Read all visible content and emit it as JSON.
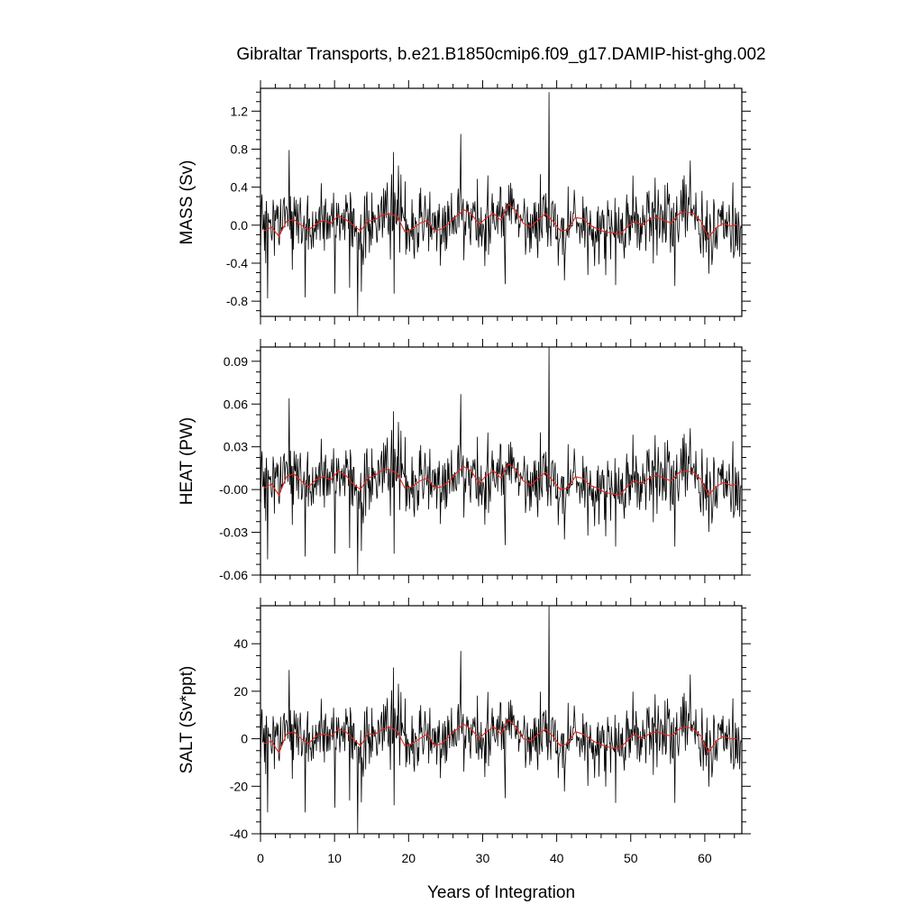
{
  "title": "Gibraltar Transports, b.e21.B1850cmip6.f09_g17.DAMIP-hist-ghg.002",
  "colors": {
    "raw": "#000000",
    "smooth": "#e8261d",
    "frame": "#000000"
  },
  "chart_data": [
    {
      "type": "line",
      "name": "mass",
      "ylabel": "MASS (Sv)",
      "xlabel": "",
      "xlim": [
        0,
        65
      ],
      "ylim": [
        -0.96,
        1.44
      ],
      "xticks": [
        0,
        10,
        20,
        30,
        40,
        50,
        60
      ],
      "yticks": [
        -0.8,
        -0.4,
        0.0,
        0.4,
        0.8,
        1.2
      ],
      "ytick_labels": [
        "-0.8",
        "-0.4",
        "0.0",
        "0.4",
        "0.8",
        "1.2"
      ],
      "grid": false,
      "series": [
        {
          "role": "monthly",
          "color": "#000000",
          "noise_std": 0.2,
          "spikes": [
            {
              "x": 38.96,
              "y": 1.4
            },
            {
              "x": 13.12,
              "y": -0.96
            },
            {
              "x": 27.0,
              "y": 0.96
            },
            {
              "x": 3.87,
              "y": 0.79
            },
            {
              "x": 0.96,
              "y": -0.77
            },
            {
              "x": 17.96,
              "y": 0.77
            },
            {
              "x": 6.04,
              "y": -0.76
            },
            {
              "x": 10.04,
              "y": -0.72
            },
            {
              "x": 18.0,
              "y": -0.72
            },
            {
              "x": 12.0,
              "y": -0.66
            },
            {
              "x": 33.0,
              "y": -0.62
            },
            {
              "x": 47.96,
              "y": -0.63
            },
            {
              "x": 55.96,
              "y": -0.64
            },
            {
              "x": 58.04,
              "y": 0.68
            }
          ]
        },
        {
          "role": "annual-mean",
          "color": "#e8261d",
          "x": [
            0.5,
            1.5,
            2.5,
            3.5,
            4.5,
            5.5,
            6.5,
            7.5,
            8.5,
            9.5,
            10.5,
            11.5,
            12.5,
            13.5,
            14.5,
            15.5,
            16.5,
            17.5,
            18.5,
            19.5,
            20.5,
            21.5,
            22.5,
            23.5,
            24.5,
            25.5,
            26.5,
            27.5,
            28.5,
            29.5,
            30.5,
            31.5,
            32.5,
            33.5,
            34.5,
            35.5,
            36.5,
            37.5,
            38.5,
            39.5,
            40.5,
            41.5,
            42.5,
            43.5,
            44.5,
            45.5,
            46.5,
            47.5,
            48.5,
            49.5,
            50.5,
            51.5,
            52.5,
            53.5,
            54.5,
            55.5,
            56.5,
            57.5,
            58.5,
            59.5,
            60.5,
            61.5,
            62.5,
            63.5,
            64.5
          ],
          "y": [
            -0.06,
            -0.02,
            -0.12,
            0.04,
            0.06,
            0.0,
            -0.05,
            0.01,
            0.05,
            0.02,
            0.1,
            0.06,
            0.0,
            -0.06,
            0.04,
            0.06,
            0.11,
            0.12,
            0.09,
            -0.07,
            -0.04,
            0.02,
            0.05,
            -0.06,
            -0.04,
            0.02,
            0.1,
            0.16,
            0.12,
            0.0,
            0.08,
            0.12,
            0.05,
            0.22,
            0.15,
            0.02,
            -0.02,
            0.06,
            0.12,
            0.04,
            -0.06,
            -0.05,
            0.08,
            0.07,
            0.0,
            -0.04,
            -0.07,
            -0.08,
            -0.1,
            -0.02,
            0.04,
            0.0,
            0.06,
            0.08,
            0.05,
            0.02,
            0.12,
            0.14,
            0.12,
            0.04,
            -0.13,
            -0.03,
            0.02,
            -0.01,
            0.01
          ]
        }
      ]
    },
    {
      "type": "line",
      "name": "heat",
      "ylabel": "HEAT (PW)",
      "xlabel": "",
      "xlim": [
        0,
        65
      ],
      "ylim": [
        -0.06,
        0.1
      ],
      "xticks": [
        0,
        10,
        20,
        30,
        40,
        50,
        60
      ],
      "yticks": [
        -0.06,
        -0.03,
        0.0,
        0.03,
        0.06,
        0.09
      ],
      "ytick_labels": [
        "-0.06",
        "-0.03",
        "-0.00",
        "0.03",
        "0.06",
        "0.09"
      ],
      "grid": false,
      "series": [
        {
          "role": "monthly",
          "color": "#000000",
          "noise_std": 0.0135,
          "spikes": [
            {
              "x": 38.96,
              "y": 0.1
            },
            {
              "x": 13.12,
              "y": -0.06
            },
            {
              "x": 27.0,
              "y": 0.067
            },
            {
              "x": 3.87,
              "y": 0.064
            },
            {
              "x": 0.96,
              "y": -0.049
            },
            {
              "x": 17.96,
              "y": 0.055
            },
            {
              "x": 6.04,
              "y": -0.047
            },
            {
              "x": 10.04,
              "y": -0.045
            },
            {
              "x": 18.0,
              "y": -0.045
            },
            {
              "x": 12.0,
              "y": -0.041
            },
            {
              "x": 33.0,
              "y": -0.039
            },
            {
              "x": 47.96,
              "y": -0.04
            },
            {
              "x": 55.96,
              "y": -0.04
            },
            {
              "x": 58.04,
              "y": 0.043
            }
          ]
        },
        {
          "role": "annual-mean",
          "color": "#e8261d",
          "x": [
            0.5,
            1.5,
            2.5,
            3.5,
            4.5,
            5.5,
            6.5,
            7.5,
            8.5,
            9.5,
            10.5,
            11.5,
            12.5,
            13.5,
            14.5,
            15.5,
            16.5,
            17.5,
            18.5,
            19.5,
            20.5,
            21.5,
            22.5,
            23.5,
            24.5,
            25.5,
            26.5,
            27.5,
            28.5,
            29.5,
            30.5,
            31.5,
            32.5,
            33.5,
            34.5,
            35.5,
            36.5,
            37.5,
            38.5,
            39.5,
            40.5,
            41.5,
            42.5,
            43.5,
            44.5,
            45.5,
            46.5,
            47.5,
            48.5,
            49.5,
            50.5,
            51.5,
            52.5,
            53.5,
            54.5,
            55.5,
            56.5,
            57.5,
            58.5,
            59.5,
            60.5,
            61.5,
            62.5,
            63.5,
            64.5
          ],
          "y": [
            0.001,
            0.004,
            -0.004,
            0.009,
            0.011,
            0.006,
            0.002,
            0.007,
            0.009,
            0.007,
            0.013,
            0.01,
            0.004,
            0.0,
            0.008,
            0.01,
            0.014,
            0.014,
            0.011,
            0.001,
            0.002,
            0.006,
            0.008,
            0.001,
            0.002,
            0.006,
            0.012,
            0.016,
            0.013,
            0.004,
            0.01,
            0.013,
            0.008,
            0.018,
            0.014,
            0.006,
            0.003,
            0.008,
            0.012,
            0.006,
            0.0,
            0.001,
            0.009,
            0.008,
            0.003,
            0.001,
            -0.002,
            -0.003,
            -0.004,
            0.002,
            0.006,
            0.004,
            0.008,
            0.01,
            0.008,
            0.006,
            0.012,
            0.013,
            0.012,
            0.007,
            -0.004,
            0.002,
            0.005,
            0.003,
            0.004
          ]
        }
      ]
    },
    {
      "type": "line",
      "name": "salt",
      "ylabel": "SALT (Sv*ppt)",
      "xlabel": "Years of Integration",
      "xlim": [
        0,
        65
      ],
      "ylim": [
        -40,
        56
      ],
      "xticks": [
        0,
        10,
        20,
        30,
        40,
        50,
        60
      ],
      "xtick_labels": [
        "0",
        "10",
        "20",
        "30",
        "40",
        "50",
        "60"
      ],
      "yticks": [
        -40,
        -20,
        0,
        20,
        40
      ],
      "ytick_labels": [
        "-40",
        "-20",
        "0",
        "20",
        "40"
      ],
      "grid": false,
      "series": [
        {
          "role": "monthly",
          "color": "#000000",
          "noise_std": 7.5,
          "spikes": [
            {
              "x": 38.96,
              "y": 56
            },
            {
              "x": 13.12,
              "y": -40
            },
            {
              "x": 27.0,
              "y": 37
            },
            {
              "x": 3.87,
              "y": 29
            },
            {
              "x": 0.96,
              "y": -31
            },
            {
              "x": 17.96,
              "y": 30
            },
            {
              "x": 6.04,
              "y": -31
            },
            {
              "x": 10.04,
              "y": -29
            },
            {
              "x": 18.0,
              "y": -28
            },
            {
              "x": 12.0,
              "y": -26
            },
            {
              "x": 33.0,
              "y": -25
            },
            {
              "x": 47.96,
              "y": -27
            },
            {
              "x": 55.96,
              "y": -27
            },
            {
              "x": 58.04,
              "y": 27
            }
          ]
        },
        {
          "role": "annual-mean",
          "color": "#e8261d",
          "x": [
            0.5,
            1.5,
            2.5,
            3.5,
            4.5,
            5.5,
            6.5,
            7.5,
            8.5,
            9.5,
            10.5,
            11.5,
            12.5,
            13.5,
            14.5,
            15.5,
            16.5,
            17.5,
            18.5,
            19.5,
            20.5,
            21.5,
            22.5,
            23.5,
            24.5,
            25.5,
            26.5,
            27.5,
            28.5,
            29.5,
            30.5,
            31.5,
            32.5,
            33.5,
            34.5,
            35.5,
            36.5,
            37.5,
            38.5,
            39.5,
            40.5,
            41.5,
            42.5,
            43.5,
            44.5,
            45.5,
            46.5,
            47.5,
            48.5,
            49.5,
            50.5,
            51.5,
            52.5,
            53.5,
            54.5,
            55.5,
            56.5,
            57.5,
            58.5,
            59.5,
            60.5,
            61.5,
            62.5,
            63.5,
            64.5
          ],
          "y": [
            -2,
            -1,
            -6,
            2,
            3,
            0,
            -2,
            1,
            2,
            1,
            4,
            3,
            0,
            -3,
            2,
            2,
            4,
            5,
            3,
            -3,
            -2,
            0,
            2,
            -3,
            -2,
            1,
            4,
            6,
            4,
            0,
            3,
            5,
            2,
            8,
            5,
            0,
            -1,
            2,
            4,
            1,
            -3,
            -2,
            3,
            2,
            0,
            -2,
            -3,
            -4,
            -4,
            -1,
            2,
            0,
            2,
            3,
            2,
            1,
            4,
            5,
            4,
            1,
            -6,
            -1,
            1,
            0,
            0
          ]
        }
      ]
    }
  ]
}
